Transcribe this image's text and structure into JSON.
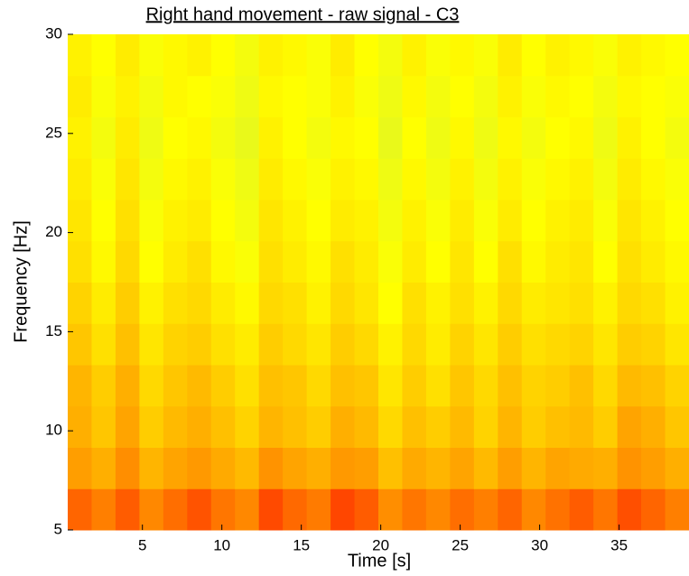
{
  "chart_data": {
    "type": "heatmap",
    "title": "Right hand movement - raw signal - C3",
    "x_label": "Time [s]",
    "y_label": "Frequency [Hz]",
    "xlim": [
      0.3,
      39.4
    ],
    "xticks": [
      5,
      10,
      15,
      20,
      25,
      30,
      35
    ],
    "ylim": [
      5,
      30
    ],
    "yticks": [
      5,
      10,
      15,
      20,
      25,
      30
    ],
    "colormap": [
      "#30d8b0",
      "#c8f040",
      "#ffff00",
      "#ffc000",
      "#ff8800",
      "#ff3000"
    ],
    "z": [
      [
        0.88,
        0.82,
        0.9,
        0.8,
        0.86,
        0.92,
        0.84,
        0.8,
        0.94,
        0.87,
        0.83,
        0.95,
        0.9,
        0.78,
        0.84,
        0.8,
        0.86,
        0.82,
        0.88,
        0.8,
        0.85,
        0.9,
        0.84,
        0.93,
        0.88,
        0.82
      ],
      [
        0.72,
        0.66,
        0.78,
        0.64,
        0.7,
        0.74,
        0.68,
        0.62,
        0.76,
        0.7,
        0.66,
        0.74,
        0.72,
        0.6,
        0.68,
        0.64,
        0.7,
        0.62,
        0.72,
        0.64,
        0.7,
        0.68,
        0.66,
        0.76,
        0.72,
        0.66
      ],
      [
        0.66,
        0.58,
        0.7,
        0.56,
        0.62,
        0.66,
        0.6,
        0.54,
        0.64,
        0.6,
        0.56,
        0.66,
        0.62,
        0.52,
        0.6,
        0.56,
        0.62,
        0.54,
        0.64,
        0.56,
        0.6,
        0.62,
        0.56,
        0.7,
        0.66,
        0.58
      ],
      [
        0.64,
        0.56,
        0.66,
        0.52,
        0.58,
        0.62,
        0.56,
        0.5,
        0.6,
        0.58,
        0.52,
        0.6,
        0.58,
        0.48,
        0.56,
        0.5,
        0.58,
        0.52,
        0.6,
        0.54,
        0.56,
        0.6,
        0.52,
        0.62,
        0.6,
        0.54
      ],
      [
        0.58,
        0.5,
        0.6,
        0.48,
        0.54,
        0.56,
        0.5,
        0.46,
        0.56,
        0.52,
        0.48,
        0.56,
        0.52,
        0.44,
        0.52,
        0.46,
        0.54,
        0.48,
        0.56,
        0.5,
        0.52,
        0.54,
        0.48,
        0.56,
        0.54,
        0.48
      ],
      [
        0.54,
        0.46,
        0.56,
        0.44,
        0.5,
        0.52,
        0.46,
        0.42,
        0.52,
        0.5,
        0.44,
        0.52,
        0.48,
        0.4,
        0.5,
        0.44,
        0.5,
        0.44,
        0.52,
        0.46,
        0.48,
        0.5,
        0.44,
        0.52,
        0.5,
        0.44
      ],
      [
        0.5,
        0.42,
        0.52,
        0.4,
        0.46,
        0.5,
        0.42,
        0.38,
        0.5,
        0.46,
        0.42,
        0.5,
        0.46,
        0.38,
        0.46,
        0.4,
        0.48,
        0.4,
        0.5,
        0.42,
        0.46,
        0.48,
        0.4,
        0.5,
        0.46,
        0.42
      ],
      [
        0.48,
        0.4,
        0.5,
        0.38,
        0.44,
        0.46,
        0.4,
        0.36,
        0.48,
        0.44,
        0.4,
        0.46,
        0.44,
        0.36,
        0.44,
        0.38,
        0.46,
        0.38,
        0.46,
        0.4,
        0.44,
        0.46,
        0.38,
        0.48,
        0.44,
        0.4
      ],
      [
        0.46,
        0.38,
        0.48,
        0.36,
        0.42,
        0.44,
        0.38,
        0.34,
        0.46,
        0.42,
        0.38,
        0.44,
        0.42,
        0.34,
        0.42,
        0.36,
        0.44,
        0.36,
        0.44,
        0.38,
        0.42,
        0.44,
        0.36,
        0.46,
        0.42,
        0.38
      ],
      [
        0.44,
        0.36,
        0.46,
        0.34,
        0.4,
        0.42,
        0.36,
        0.32,
        0.44,
        0.4,
        0.36,
        0.42,
        0.4,
        0.32,
        0.4,
        0.34,
        0.42,
        0.34,
        0.42,
        0.36,
        0.4,
        0.42,
        0.34,
        0.44,
        0.4,
        0.36
      ],
      [
        0.46,
        0.38,
        0.44,
        0.36,
        0.42,
        0.4,
        0.38,
        0.34,
        0.42,
        0.4,
        0.38,
        0.44,
        0.38,
        0.34,
        0.42,
        0.36,
        0.4,
        0.36,
        0.44,
        0.38,
        0.42,
        0.4,
        0.36,
        0.42,
        0.4,
        0.38
      ],
      [
        0.44,
        0.4,
        0.46,
        0.38,
        0.42,
        0.44,
        0.4,
        0.36,
        0.44,
        0.42,
        0.38,
        0.46,
        0.4,
        0.36,
        0.44,
        0.38,
        0.42,
        0.38,
        0.46,
        0.4,
        0.44,
        0.42,
        0.38,
        0.44,
        0.42,
        0.4
      ]
    ]
  }
}
